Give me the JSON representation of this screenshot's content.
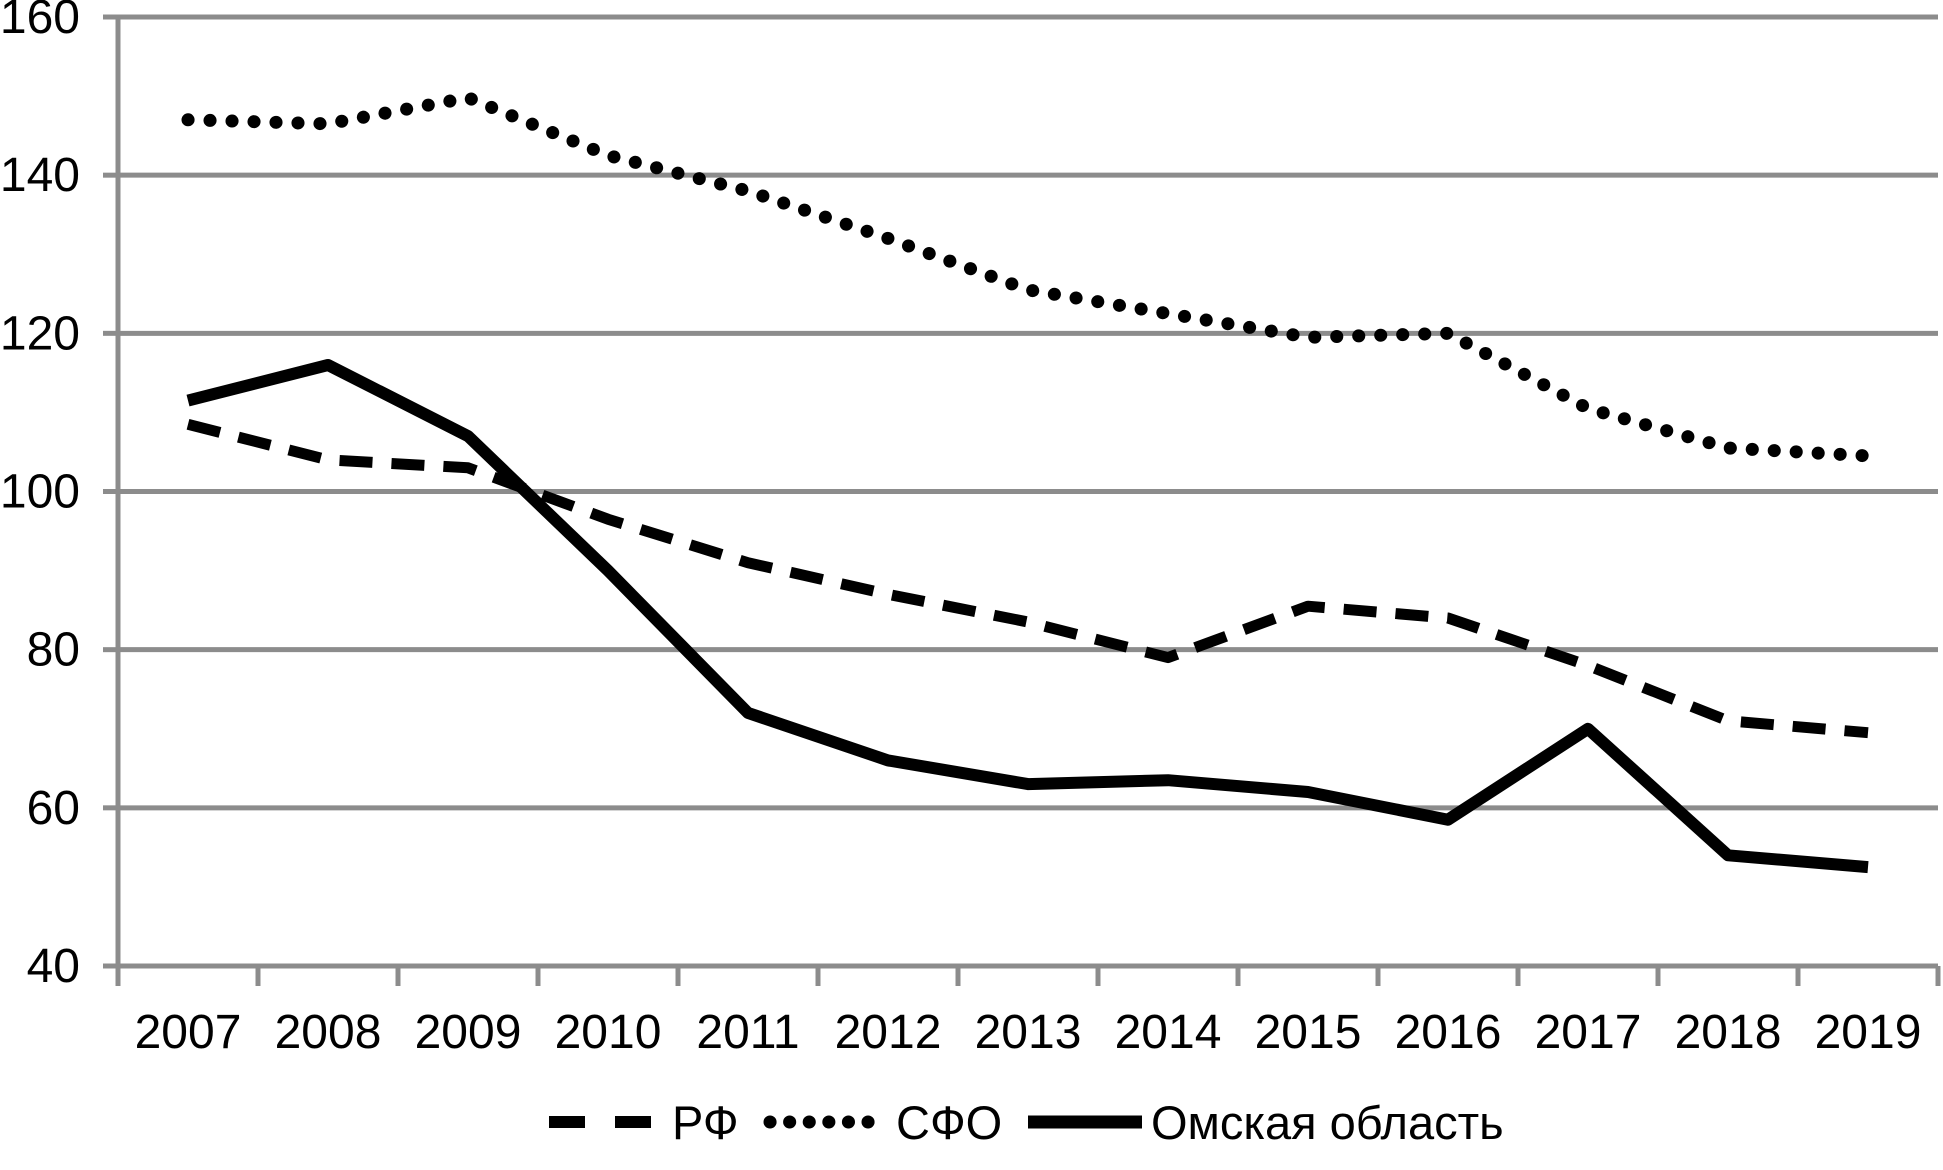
{
  "chart_data": {
    "type": "line",
    "title": "",
    "xlabel": "",
    "ylabel": "",
    "categories": [
      "2007",
      "2008",
      "2009",
      "2010",
      "2011",
      "2012",
      "2013",
      "2014",
      "2015",
      "2016",
      "2017",
      "2018",
      "2019"
    ],
    "series": [
      {
        "name": "РФ",
        "style": "dashed",
        "values": [
          108.5,
          104,
          103,
          96.5,
          91,
          87,
          83.5,
          79,
          85.5,
          84,
          78,
          71,
          69.5
        ]
      },
      {
        "name": "СФО",
        "style": "dotted",
        "values": [
          147,
          146.5,
          149.8,
          142.5,
          138,
          132,
          125.5,
          122.5,
          119.5,
          120,
          110.5,
          105.5,
          104.5
        ]
      },
      {
        "name": "Омская область",
        "style": "solid",
        "values": [
          111.5,
          116,
          107,
          90,
          72,
          66,
          63,
          63.5,
          62,
          58.5,
          70,
          54,
          52.5
        ]
      }
    ],
    "ylim": [
      40,
      160
    ],
    "yticks": [
      40,
      60,
      80,
      100,
      120,
      140,
      160
    ],
    "grid": true,
    "legend_position": "bottom",
    "colors": {
      "line": "#000000",
      "grid": "#8c8c8c",
      "text": "#000000",
      "background": "#ffffff"
    }
  }
}
